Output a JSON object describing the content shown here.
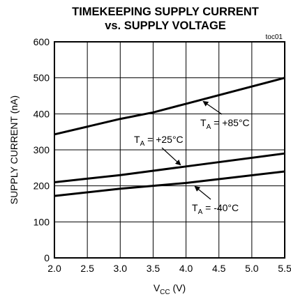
{
  "chart_data": {
    "type": "line",
    "title": "TIMEKEEPING SUPPLY CURRENT",
    "subtitle": "vs. SUPPLY VOLTAGE",
    "tag": "toc01",
    "xlabel": {
      "main": "V",
      "sub": "CC",
      "unit": " (V)"
    },
    "ylabel": "SUPPLY CURRENT (nA)",
    "xlim": [
      2.0,
      5.5
    ],
    "ylim": [
      0,
      600
    ],
    "xticks": [
      "2.0",
      "2.5",
      "3.0",
      "3.5",
      "4.0",
      "4.5",
      "5.0",
      "5.5"
    ],
    "yticks": [
      "0",
      "100",
      "200",
      "300",
      "400",
      "500",
      "600"
    ],
    "grid": true,
    "series": [
      {
        "name": "T_A = +85°C",
        "label_prefix": "T",
        "label_sub": "A",
        "label_suffix": " = +85°C",
        "x": [
          2.0,
          3.0,
          3.5,
          4.0,
          5.5
        ],
        "y": [
          343,
          386,
          404,
          428,
          500
        ]
      },
      {
        "name": "T_A = +25°C",
        "label_prefix": "T",
        "label_sub": "A",
        "label_suffix": " = +25°C",
        "x": [
          2.0,
          3.0,
          4.0,
          5.5
        ],
        "y": [
          210,
          230,
          254,
          290
        ]
      },
      {
        "name": "T_A = -40°C",
        "label_prefix": "T",
        "label_sub": "A",
        "label_suffix": " = -40°C",
        "x": [
          2.0,
          3.0,
          4.0,
          5.5
        ],
        "y": [
          172,
          192,
          208,
          240
        ]
      }
    ]
  }
}
